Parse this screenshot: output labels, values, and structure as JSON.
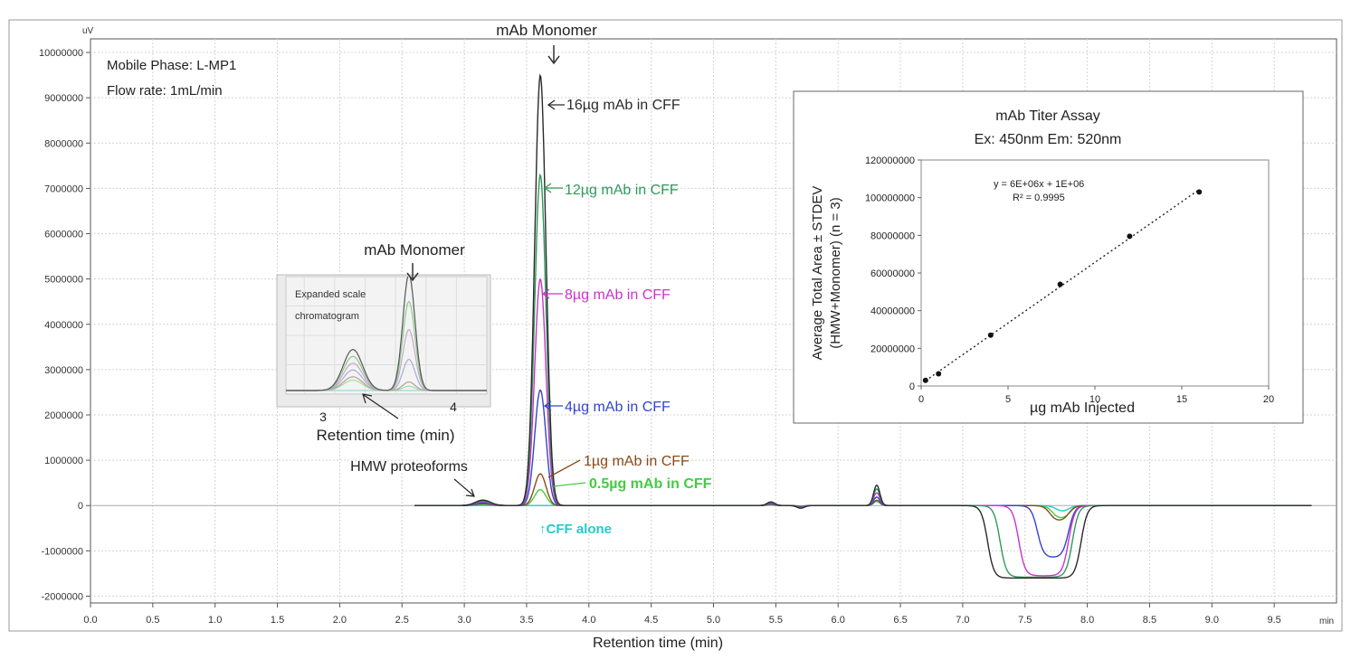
{
  "chart_data": [
    {
      "type": "line",
      "xlabel": "Retention time (min)",
      "x_unit": "min",
      "y_unit": "uV",
      "xlim": [
        0.0,
        10.0
      ],
      "ylim": [
        -2000000,
        10000000
      ],
      "x_ticks": [
        "0.0",
        "0.5",
        "1.0",
        "1.5",
        "2.0",
        "2.5",
        "3.0",
        "3.5",
        "4.0",
        "4.5",
        "5.0",
        "5.5",
        "6.0",
        "6.5",
        "7.0",
        "7.5",
        "8.0",
        "8.5",
        "9.0",
        "9.5"
      ],
      "y_ticks": [
        "10000000",
        "9000000",
        "8000000",
        "7000000",
        "6000000",
        "5000000",
        "4000000",
        "3000000",
        "2000000",
        "1000000",
        "0",
        "-1000000",
        "-2000000"
      ],
      "grid": true,
      "conditions": [
        "Mobile Phase: L-MP1",
        "Flow rate: 1mL/min"
      ],
      "series": [
        {
          "name": "16µg mAb in CFF",
          "color": "#2a2a2a",
          "mono_peak": 9500000,
          "hmw": 120000,
          "dip": -1600000,
          "dip_start": 7.2,
          "dip_end": 7.95
        },
        {
          "name": "12µg mAb in CFF",
          "color": "#2e9a5a",
          "mono_peak": 7300000,
          "hmw": 100000,
          "dip": -1580000,
          "dip_start": 7.3,
          "dip_end": 7.88
        },
        {
          "name": "8µg mAb in CFF",
          "color": "#cc33cc",
          "mono_peak": 5000000,
          "hmw": 80000,
          "dip": -1550000,
          "dip_start": 7.45,
          "dip_end": 7.85
        },
        {
          "name": "4µg mAb in CFF",
          "color": "#3344cc",
          "mono_peak": 2550000,
          "hmw": 60000,
          "dip": -1150000,
          "dip_start": 7.6,
          "dip_end": 7.85
        },
        {
          "name": "1µg mAb in CFF",
          "color": "#8a4a1a",
          "mono_peak": 700000,
          "hmw": 40000,
          "dip": -350000,
          "dip_start": 7.7,
          "dip_end": 7.85
        },
        {
          "name": "0.5µg mAb in CFF",
          "color": "#44cc44",
          "mono_peak": 350000,
          "hmw": 30000,
          "dip": -300000,
          "dip_start": 7.72,
          "dip_end": 7.86
        },
        {
          "name": "CFF alone",
          "color": "#22cccc",
          "mono_peak": 0,
          "hmw": 0,
          "dip": -150000,
          "dip_start": 7.75,
          "dip_end": 7.85
        }
      ],
      "annotations": {
        "monomer_top": "mAb Monomer",
        "monomer_inset": "mAb Monomer",
        "hmw": "HMW proteoforms",
        "cff_alone": "↑CFF alone",
        "inset_caption": "Retention time (min)",
        "inset_title_line1": "Expanded scale",
        "inset_title_line2": "chromatogram",
        "inset_ticks": [
          "3",
          "4"
        ]
      }
    },
    {
      "type": "scatter",
      "title_line1": "mAb Titer Assay",
      "title_line2": "Ex: 450nm Em: 520nm",
      "xlabel": "µg mAb Injected",
      "ylabel_line1": "Average Total Area ± STDEV",
      "ylabel_line2": "(HMW+Monomer) (n = 3)",
      "xlim": [
        0,
        20
      ],
      "ylim": [
        0,
        120000000
      ],
      "x_ticks": [
        "0",
        "5",
        "10",
        "15",
        "20"
      ],
      "y_ticks": [
        "0",
        "20000000",
        "40000000",
        "60000000",
        "80000000",
        "100000000",
        "120000000"
      ],
      "x": [
        0.25,
        1,
        4,
        8,
        12,
        16
      ],
      "y": [
        3000000,
        6500000,
        27000000,
        54000000,
        79500000,
        103000000
      ],
      "trendline": "linear, dotted",
      "equation": "y = 6E+06x + 1E+06",
      "r_squared": "R² = 0.9995"
    }
  ]
}
